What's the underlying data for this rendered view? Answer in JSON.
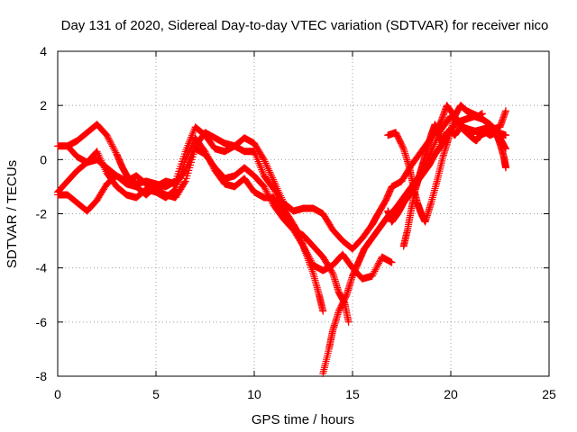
{
  "chart_data": {
    "type": "scatter",
    "title": "Day 131 of 2020, Sidereal Day-to-day VTEC variation (SDTVAR) for receiver nico",
    "xlabel": "GPS time / hours",
    "ylabel": "SDTVAR / TECUs",
    "xlim": [
      0,
      25
    ],
    "ylim": [
      -8,
      4
    ],
    "xticks": [
      "0",
      "5",
      "10",
      "15",
      "20",
      "25"
    ],
    "yticks": [
      "-8",
      "-6",
      "-4",
      "-2",
      "0",
      "2",
      "4"
    ],
    "xtick_values": [
      0,
      5,
      10,
      15,
      20,
      25
    ],
    "ytick_values": [
      -8,
      -6,
      -4,
      -2,
      0,
      2,
      4
    ],
    "grid": true,
    "marker": "plus",
    "color": "#ff0000",
    "series": [
      {
        "points": [
          [
            0.0,
            0.5
          ],
          [
            0.5,
            0.5
          ],
          [
            1.0,
            0.7
          ],
          [
            1.5,
            1.0
          ],
          [
            2.0,
            1.3
          ],
          [
            2.5,
            0.9
          ],
          [
            3.0,
            0.2
          ],
          [
            3.3,
            -0.3
          ],
          [
            3.6,
            -0.7
          ],
          [
            4.0,
            -0.9
          ],
          [
            4.5,
            -0.8
          ],
          [
            5.0,
            -0.9
          ],
          [
            5.5,
            -1.0
          ],
          [
            6.0,
            -0.8
          ],
          [
            6.5,
            0.3
          ],
          [
            7.0,
            1.2
          ],
          [
            7.5,
            0.9
          ],
          [
            8.0,
            0.4
          ],
          [
            8.5,
            0.3
          ],
          [
            9.0,
            0.5
          ],
          [
            9.5,
            0.8
          ],
          [
            10.0,
            0.6
          ],
          [
            10.5,
            0.0
          ],
          [
            11.0,
            -0.8
          ],
          [
            11.5,
            -1.6
          ],
          [
            12.0,
            -1.9
          ],
          [
            12.5,
            -1.8
          ],
          [
            13.0,
            -1.8
          ],
          [
            13.5,
            -2.0
          ],
          [
            14.0,
            -2.6
          ],
          [
            14.5,
            -3.0
          ],
          [
            15.0,
            -3.3
          ],
          [
            15.5,
            -2.9
          ],
          [
            16.0,
            -2.4
          ],
          [
            16.3,
            -2.0
          ],
          [
            16.7,
            -1.5
          ],
          [
            17.0,
            -1.0
          ],
          [
            17.5,
            -0.8
          ],
          [
            18.0,
            -0.2
          ],
          [
            18.5,
            0.3
          ],
          [
            19.0,
            0.8
          ],
          [
            19.5,
            1.4
          ],
          [
            19.8,
            2.0
          ],
          [
            20.2,
            1.6
          ],
          [
            20.6,
            1.2
          ],
          [
            21.0,
            1.1
          ],
          [
            21.5,
            1.0
          ],
          [
            22.0,
            1.1
          ],
          [
            22.5,
            1.2
          ],
          [
            22.8,
            1.8
          ]
        ]
      },
      {
        "points": [
          [
            0.0,
            -1.2
          ],
          [
            0.5,
            -0.8
          ],
          [
            1.0,
            -0.4
          ],
          [
            1.5,
            -0.1
          ],
          [
            2.0,
            0.3
          ],
          [
            2.5,
            -0.5
          ],
          [
            3.0,
            -1.0
          ],
          [
            3.5,
            -1.3
          ],
          [
            4.0,
            -1.4
          ],
          [
            4.5,
            -1.1
          ],
          [
            5.0,
            -1.2
          ],
          [
            5.5,
            -1.4
          ],
          [
            6.0,
            -1.1
          ],
          [
            6.5,
            0.0
          ],
          [
            7.0,
            0.8
          ],
          [
            7.5,
            0.3
          ],
          [
            8.0,
            -0.4
          ],
          [
            8.5,
            -0.9
          ],
          [
            9.0,
            -1.0
          ],
          [
            9.5,
            -0.7
          ],
          [
            10.0,
            -1.2
          ],
          [
            10.5,
            -1.4
          ],
          [
            11.0,
            -1.4
          ],
          [
            11.5,
            -2.0
          ],
          [
            12.0,
            -2.6
          ],
          [
            12.5,
            -3.2
          ],
          [
            13.0,
            -3.9
          ],
          [
            13.5,
            -4.1
          ],
          [
            14.0,
            -3.9
          ],
          [
            14.5,
            -3.5
          ],
          [
            15.0,
            -4.0
          ],
          [
            15.5,
            -4.4
          ],
          [
            16.0,
            -4.3
          ],
          [
            16.5,
            -3.6
          ],
          [
            17.0,
            -3.8
          ]
        ]
      },
      {
        "points": [
          [
            0.0,
            -1.3
          ],
          [
            0.5,
            -1.3
          ],
          [
            1.0,
            -1.6
          ],
          [
            1.5,
            -1.9
          ],
          [
            2.0,
            -1.5
          ],
          [
            2.5,
            -0.9
          ],
          [
            3.0,
            -0.6
          ],
          [
            3.5,
            -0.9
          ],
          [
            4.0,
            -1.0
          ],
          [
            4.5,
            -1.3
          ],
          [
            5.0,
            -1.0
          ],
          [
            5.5,
            -0.8
          ],
          [
            6.0,
            -0.9
          ],
          [
            6.5,
            -0.4
          ],
          [
            7.0,
            0.5
          ],
          [
            7.5,
            1.0
          ],
          [
            8.0,
            0.8
          ],
          [
            8.5,
            0.6
          ],
          [
            9.0,
            0.5
          ],
          [
            9.5,
            0.3
          ],
          [
            10.0,
            0.3
          ],
          [
            10.5,
            -0.6
          ],
          [
            11.0,
            -1.1
          ],
          [
            11.5,
            -1.8
          ],
          [
            12.0,
            -2.4
          ],
          [
            12.3,
            -2.8
          ],
          [
            12.6,
            -3.4
          ],
          [
            13.0,
            -4.2
          ],
          [
            13.3,
            -5.0
          ],
          [
            13.5,
            -5.6
          ]
        ]
      },
      {
        "points": [
          [
            13.5,
            -7.9
          ],
          [
            13.8,
            -7.0
          ],
          [
            14.0,
            -6.3
          ],
          [
            14.3,
            -5.6
          ],
          [
            14.7,
            -5.0
          ],
          [
            15.0,
            -4.3
          ],
          [
            15.3,
            -3.8
          ],
          [
            15.6,
            -3.3
          ],
          [
            16.0,
            -2.9
          ],
          [
            16.4,
            -2.5
          ],
          [
            16.8,
            -2.1
          ],
          [
            17.2,
            -1.8
          ],
          [
            17.6,
            -1.4
          ],
          [
            18.0,
            -1.0
          ],
          [
            18.5,
            -0.5
          ],
          [
            19.0,
            0.3
          ],
          [
            19.5,
            1.1
          ],
          [
            20.0,
            1.6
          ],
          [
            20.5,
            1.3
          ],
          [
            21.0,
            1.0
          ],
          [
            21.5,
            1.1
          ],
          [
            22.0,
            1.2
          ],
          [
            22.5,
            0.8
          ],
          [
            22.8,
            0.4
          ]
        ]
      },
      {
        "points": [
          [
            0.5,
            0.5
          ],
          [
            1.0,
            0.1
          ],
          [
            1.5,
            -0.1
          ],
          [
            2.0,
            0.0
          ],
          [
            2.5,
            -0.3
          ],
          [
            3.0,
            -0.6
          ],
          [
            3.5,
            -0.8
          ],
          [
            4.0,
            -0.6
          ],
          [
            4.5,
            -0.9
          ],
          [
            5.0,
            -1.1
          ],
          [
            5.5,
            -1.3
          ],
          [
            6.0,
            -1.4
          ],
          [
            6.5,
            -0.8
          ],
          [
            7.0,
            0.4
          ],
          [
            7.5,
            0.2
          ],
          [
            8.0,
            -0.3
          ],
          [
            8.5,
            -0.7
          ],
          [
            9.0,
            -0.6
          ],
          [
            9.5,
            -0.3
          ],
          [
            10.0,
            -0.6
          ],
          [
            10.5,
            -1.0
          ],
          [
            11.0,
            -1.7
          ],
          [
            11.5,
            -2.2
          ],
          [
            12.0,
            -2.6
          ],
          [
            12.5,
            -2.8
          ],
          [
            13.0,
            -3.2
          ],
          [
            13.5,
            -3.6
          ],
          [
            14.0,
            -4.2
          ],
          [
            14.3,
            -4.9
          ],
          [
            14.6,
            -5.3
          ],
          [
            14.8,
            -6.0
          ]
        ]
      },
      {
        "points": [
          [
            16.8,
            -1.9
          ],
          [
            17.0,
            -2.3
          ],
          [
            17.3,
            -2.0
          ],
          [
            17.6,
            -1.6
          ],
          [
            18.0,
            -1.2
          ],
          [
            18.3,
            -0.8
          ],
          [
            18.6,
            -0.5
          ],
          [
            18.9,
            -0.2
          ],
          [
            19.2,
            0.2
          ],
          [
            19.5,
            0.5
          ],
          [
            19.8,
            0.9
          ],
          [
            20.1,
            1.2
          ],
          [
            20.4,
            1.4
          ],
          [
            20.8,
            1.5
          ],
          [
            21.2,
            1.6
          ],
          [
            21.6,
            1.5
          ],
          [
            22.0,
            1.3
          ],
          [
            22.4,
            1.0
          ],
          [
            22.8,
            0.9
          ]
        ]
      },
      {
        "points": [
          [
            16.8,
            0.9
          ],
          [
            17.2,
            1.0
          ],
          [
            17.6,
            0.4
          ],
          [
            17.9,
            -0.3
          ],
          [
            18.1,
            -1.0
          ],
          [
            18.3,
            -1.6
          ],
          [
            18.5,
            -2.0
          ],
          [
            18.7,
            -2.3
          ],
          [
            19.0,
            -1.6
          ],
          [
            19.3,
            -0.8
          ],
          [
            19.6,
            0.1
          ],
          [
            19.9,
            0.8
          ],
          [
            20.2,
            1.6
          ],
          [
            20.5,
            2.0
          ],
          [
            20.8,
            1.8
          ],
          [
            21.1,
            1.7
          ],
          [
            21.4,
            1.6
          ],
          [
            21.6,
            1.7
          ]
        ]
      },
      {
        "points": [
          [
            17.6,
            -3.2
          ],
          [
            17.8,
            -2.6
          ],
          [
            18.0,
            -1.8
          ],
          [
            18.2,
            -1.1
          ],
          [
            18.4,
            -0.6
          ],
          [
            18.6,
            -0.1
          ],
          [
            18.8,
            0.4
          ],
          [
            19.0,
            0.9
          ],
          [
            19.2,
            1.3
          ],
          [
            19.4,
            0.9
          ],
          [
            19.6,
            0.6
          ],
          [
            19.8,
            1.0
          ],
          [
            20.0,
            1.1
          ],
          [
            20.2,
            0.9
          ],
          [
            20.5,
            1.2
          ],
          [
            20.8,
            1.0
          ],
          [
            21.1,
            0.8
          ],
          [
            21.3,
            0.7
          ],
          [
            21.5,
            0.9
          ],
          [
            21.8,
            1.0
          ],
          [
            22.0,
            0.9
          ],
          [
            22.3,
            1.0
          ],
          [
            22.5,
            0.6
          ],
          [
            22.7,
            0.1
          ],
          [
            22.8,
            -0.3
          ]
        ]
      }
    ]
  }
}
